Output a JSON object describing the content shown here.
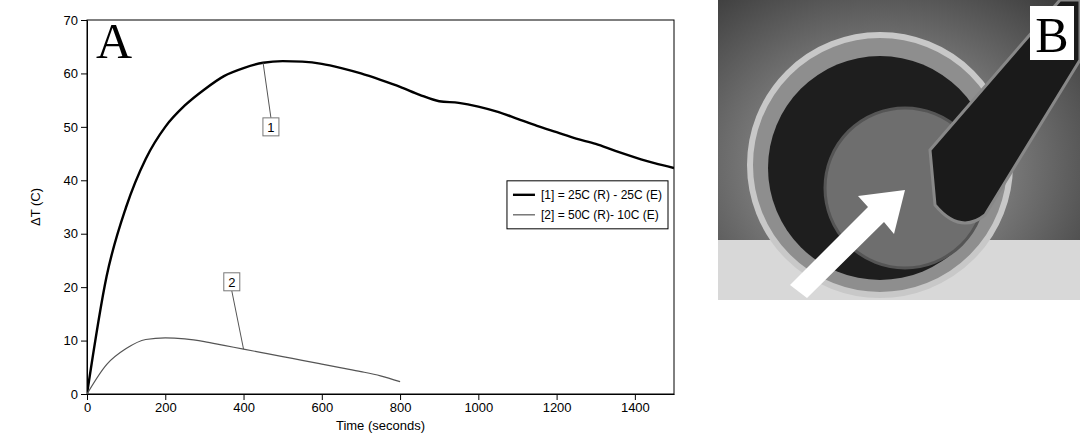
{
  "chart_data": {
    "type": "line",
    "panel_label": "A",
    "x_label": "Time (seconds)",
    "y_label": "ΔT (C)",
    "x": [
      0,
      50,
      100,
      150,
      200,
      250,
      300,
      350,
      400,
      450,
      500,
      550,
      600,
      650,
      700,
      750,
      800,
      850,
      900,
      950,
      1000,
      1050,
      1100,
      1150,
      1200,
      1250,
      1300,
      1350,
      1400,
      1450,
      1500
    ],
    "series": [
      {
        "name": "[1] = 25C (R) - 25C (E)",
        "color": "#000000",
        "line_style": "solid",
        "values": [
          0,
          22,
          35,
          44,
          50,
          54,
          57,
          59.5,
          61,
          62,
          62.3,
          62.2,
          61.8,
          61,
          60,
          58.8,
          57.5,
          56,
          54.8,
          54.5,
          53.8,
          52.8,
          51.5,
          50.2,
          49,
          47.8,
          46.8,
          45.5,
          44.3,
          43.2,
          42.3
        ]
      },
      {
        "name": "[2] = 50C (R)- 10C (E)",
        "color": "#555555",
        "line_style": "thin",
        "values": [
          0,
          5.5,
          8.5,
          10.2,
          10.5,
          10.3,
          9.8,
          9.1,
          8.4,
          7.7,
          7,
          6.3,
          5.6,
          4.9,
          4.2,
          3.4,
          2.3,
          null,
          null,
          null,
          null,
          null,
          null,
          null,
          null,
          null,
          null,
          null,
          null,
          null,
          null
        ]
      }
    ],
    "annotations": [
      {
        "text": "1",
        "x": 470,
        "y": 50,
        "series": 0,
        "at": 450
      },
      {
        "text": "2",
        "x": 370,
        "y": 21,
        "series": 1,
        "at": 400
      }
    ],
    "xlim": [
      0,
      1500
    ],
    "xticks": [
      0,
      200,
      400,
      600,
      800,
      1000,
      1200,
      1400
    ],
    "ylim": [
      0,
      70
    ],
    "yticks": [
      0,
      10,
      20,
      30,
      40,
      50,
      60,
      70
    ],
    "grid": false,
    "legend": "right"
  },
  "photo": {
    "label": "B"
  }
}
